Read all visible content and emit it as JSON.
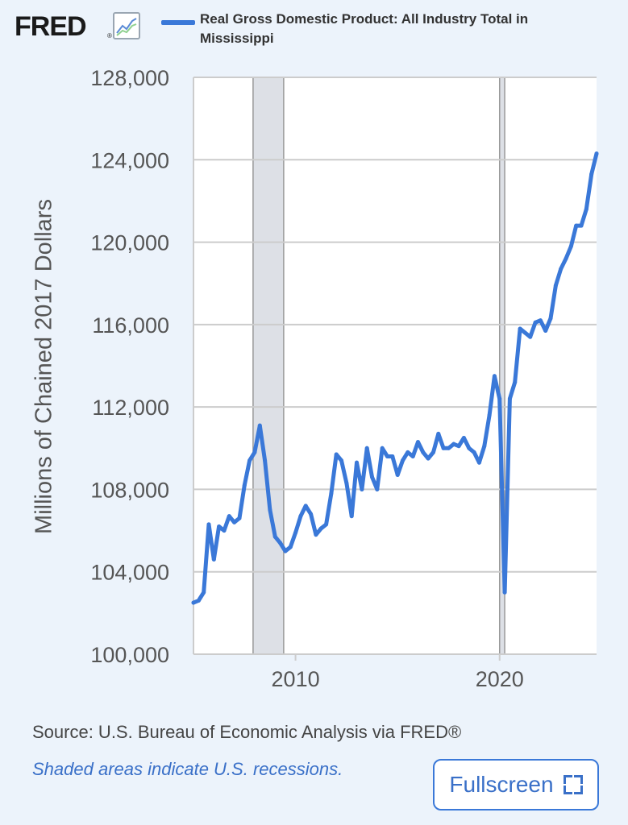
{
  "header": {
    "logo_text": "FRED",
    "logo_reg": "®",
    "logo_icon": "line-chart-icon",
    "series_label": "Real Gross Domestic Product: All Industry Total in Mississippi"
  },
  "footer": {
    "source": "Source: U.S. Bureau of Economic Analysis via FRED®",
    "note": "Shaded areas indicate U.S. recessions.",
    "fullscreen_label": "Fullscreen",
    "fullscreen_icon": "fullscreen-icon"
  },
  "colors": {
    "line": "#3a78d8",
    "recession": "#dde0e6",
    "grid": "#cccccc",
    "background": "#ecf3fb",
    "plot_bg": "#ffffff"
  },
  "chart_data": {
    "type": "line",
    "title": "",
    "xlabel": "",
    "ylabel": "Millions of Chained 2017 Dollars",
    "xlim": [
      2005.0,
      2024.75
    ],
    "ylim": [
      100000,
      128000
    ],
    "y_ticks": [
      100000,
      104000,
      108000,
      112000,
      116000,
      120000,
      124000,
      128000
    ],
    "y_tick_labels": [
      "100,000",
      "104,000",
      "108,000",
      "112,000",
      "116,000",
      "120,000",
      "124,000",
      "128,000"
    ],
    "x_ticks": [
      2010,
      2020
    ],
    "x_tick_labels": [
      "2010",
      "2020"
    ],
    "grid": true,
    "legend": "top",
    "recessions": [
      [
        2007.92,
        2009.42
      ],
      [
        2020.0,
        2020.25
      ]
    ],
    "series": [
      {
        "name": "Real Gross Domestic Product: All Industry Total in Mississippi",
        "x": [
          2005.0,
          2005.25,
          2005.5,
          2005.75,
          2006.0,
          2006.25,
          2006.5,
          2006.75,
          2007.0,
          2007.25,
          2007.5,
          2007.75,
          2008.0,
          2008.25,
          2008.5,
          2008.75,
          2009.0,
          2009.25,
          2009.5,
          2009.75,
          2010.0,
          2010.25,
          2010.5,
          2010.75,
          2011.0,
          2011.25,
          2011.5,
          2011.75,
          2012.0,
          2012.25,
          2012.5,
          2012.75,
          2013.0,
          2013.25,
          2013.5,
          2013.75,
          2014.0,
          2014.25,
          2014.5,
          2014.75,
          2015.0,
          2015.25,
          2015.5,
          2015.75,
          2016.0,
          2016.25,
          2016.5,
          2016.75,
          2017.0,
          2017.25,
          2017.5,
          2017.75,
          2018.0,
          2018.25,
          2018.5,
          2018.75,
          2019.0,
          2019.25,
          2019.5,
          2019.75,
          2020.0,
          2020.25,
          2020.5,
          2020.75,
          2021.0,
          2021.25,
          2021.5,
          2021.75,
          2022.0,
          2022.25,
          2022.5,
          2022.75,
          2023.0,
          2023.25,
          2023.5,
          2023.75,
          2024.0,
          2024.25,
          2024.5,
          2024.75
        ],
        "values": [
          102500,
          102600,
          103000,
          106300,
          104600,
          106200,
          106000,
          106700,
          106400,
          106600,
          108200,
          109400,
          109800,
          111100,
          109400,
          107000,
          105700,
          105400,
          105000,
          105200,
          105900,
          106700,
          107200,
          106800,
          105800,
          106100,
          106300,
          107800,
          109700,
          109400,
          108300,
          106700,
          109300,
          108000,
          110000,
          108600,
          108000,
          110000,
          109600,
          109600,
          108700,
          109400,
          109800,
          109600,
          110300,
          109800,
          109500,
          109800,
          110700,
          110000,
          110000,
          110200,
          110100,
          110500,
          110000,
          109800,
          109300,
          110100,
          111600,
          113500,
          112400,
          103000,
          112400,
          113200,
          115800,
          115600,
          115400,
          116100,
          116200,
          115700,
          116300,
          117900,
          118700,
          119200,
          119800,
          120800,
          120800,
          121600,
          123300,
          124300
        ]
      }
    ]
  }
}
